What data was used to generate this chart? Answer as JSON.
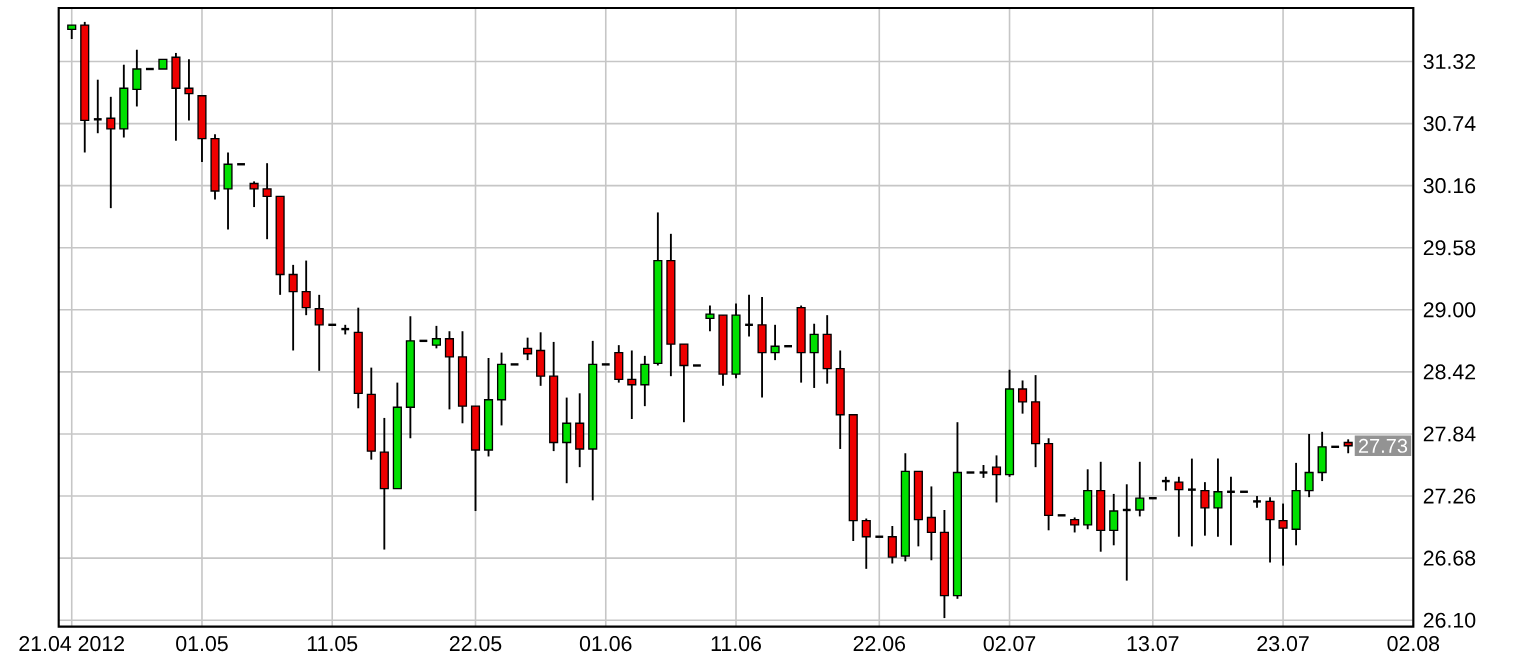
{
  "chart_data": {
    "type": "candlestick",
    "x": [
      "2012-04-21",
      "2012-04-22",
      "2012-04-23",
      "2012-04-24",
      "2012-04-25",
      "2012-04-26",
      "2012-04-27",
      "2012-04-28",
      "2012-04-29",
      "2012-04-30",
      "2012-05-01",
      "2012-05-02",
      "2012-05-03",
      "2012-05-04",
      "2012-05-05",
      "2012-05-06",
      "2012-05-07",
      "2012-05-08",
      "2012-05-09",
      "2012-05-10",
      "2012-05-11",
      "2012-05-12",
      "2012-05-13",
      "2012-05-14",
      "2012-05-15",
      "2012-05-16",
      "2012-05-17",
      "2012-05-18",
      "2012-05-19",
      "2012-05-20",
      "2012-05-21",
      "2012-05-22",
      "2012-05-23",
      "2012-05-24",
      "2012-05-25",
      "2012-05-26",
      "2012-05-27",
      "2012-05-28",
      "2012-05-29",
      "2012-05-30",
      "2012-05-31",
      "2012-06-01",
      "2012-06-02",
      "2012-06-03",
      "2012-06-04",
      "2012-06-05",
      "2012-06-06",
      "2012-06-07",
      "2012-06-08",
      "2012-06-09",
      "2012-06-10",
      "2012-06-11",
      "2012-06-12",
      "2012-06-13",
      "2012-06-14",
      "2012-06-15",
      "2012-06-16",
      "2012-06-17",
      "2012-06-18",
      "2012-06-19",
      "2012-06-20",
      "2012-06-21",
      "2012-06-22",
      "2012-06-23",
      "2012-06-24",
      "2012-06-25",
      "2012-06-26",
      "2012-06-27",
      "2012-06-28",
      "2012-06-29",
      "2012-06-30",
      "2012-07-01",
      "2012-07-02",
      "2012-07-03",
      "2012-07-04",
      "2012-07-05",
      "2012-07-06",
      "2012-07-07",
      "2012-07-08",
      "2012-07-09",
      "2012-07-10",
      "2012-07-11",
      "2012-07-12",
      "2012-07-13",
      "2012-07-14",
      "2012-07-15",
      "2012-07-16",
      "2012-07-17",
      "2012-07-18",
      "2012-07-19",
      "2012-07-20",
      "2012-07-21",
      "2012-07-22",
      "2012-07-23",
      "2012-07-24",
      "2012-07-25",
      "2012-07-26",
      "2012-07-27",
      "2012-07-28"
    ],
    "ohlc": [
      [
        31.62,
        31.66,
        31.53,
        31.66
      ],
      [
        31.66,
        31.69,
        30.47,
        30.77
      ],
      [
        30.78,
        31.15,
        30.65,
        30.78
      ],
      [
        30.79,
        30.99,
        29.95,
        30.69
      ],
      [
        30.69,
        31.29,
        30.61,
        31.07
      ],
      [
        31.06,
        31.43,
        30.9,
        31.25
      ],
      [
        31.25,
        31.25,
        31.25,
        31.25
      ],
      [
        31.25,
        31.34,
        31.25,
        31.34
      ],
      [
        31.36,
        31.4,
        30.58,
        31.07
      ],
      [
        31.07,
        31.34,
        30.77,
        31.02
      ],
      [
        31.0,
        31.0,
        30.38,
        30.6
      ],
      [
        30.6,
        30.64,
        30.03,
        30.11
      ],
      [
        30.13,
        30.47,
        29.75,
        30.36
      ],
      [
        30.36,
        30.36,
        30.36,
        30.36
      ],
      [
        30.18,
        30.2,
        29.96,
        30.13
      ],
      [
        30.13,
        30.37,
        29.66,
        30.06
      ],
      [
        30.06,
        30.06,
        29.14,
        29.33
      ],
      [
        29.33,
        29.42,
        28.62,
        29.17
      ],
      [
        29.17,
        29.46,
        28.95,
        29.02
      ],
      [
        29.01,
        29.14,
        28.43,
        28.86
      ],
      [
        28.86,
        28.86,
        28.86,
        28.86
      ],
      [
        28.82,
        28.86,
        28.77,
        28.82
      ],
      [
        28.79,
        29.02,
        28.08,
        28.22
      ],
      [
        28.21,
        28.46,
        27.6,
        27.68
      ],
      [
        27.67,
        27.99,
        26.76,
        27.33
      ],
      [
        27.33,
        28.32,
        27.33,
        28.09
      ],
      [
        28.09,
        28.94,
        27.8,
        28.71
      ],
      [
        28.71,
        28.71,
        28.71,
        28.71
      ],
      [
        28.67,
        28.85,
        28.64,
        28.73
      ],
      [
        28.73,
        28.8,
        28.07,
        28.56
      ],
      [
        28.56,
        28.8,
        27.94,
        28.1
      ],
      [
        28.1,
        28.1,
        27.12,
        27.69
      ],
      [
        27.69,
        28.55,
        27.63,
        28.16
      ],
      [
        28.16,
        28.6,
        27.92,
        28.49
      ],
      [
        28.49,
        28.49,
        28.49,
        28.49
      ],
      [
        28.64,
        28.74,
        28.53,
        28.59
      ],
      [
        28.62,
        28.79,
        28.29,
        28.38
      ],
      [
        28.38,
        28.7,
        27.68,
        27.76
      ],
      [
        27.76,
        28.18,
        27.38,
        27.94
      ],
      [
        27.94,
        28.22,
        27.53,
        27.7
      ],
      [
        27.7,
        28.71,
        27.22,
        28.49
      ],
      [
        28.49,
        28.49,
        28.49,
        28.49
      ],
      [
        28.6,
        28.67,
        28.32,
        28.35
      ],
      [
        28.35,
        28.62,
        27.98,
        28.3
      ],
      [
        28.3,
        28.57,
        28.1,
        28.49
      ],
      [
        28.5,
        29.91,
        28.48,
        29.46
      ],
      [
        29.46,
        29.71,
        28.38,
        28.68
      ],
      [
        28.68,
        28.68,
        27.95,
        28.48
      ],
      [
        28.48,
        28.48,
        28.48,
        28.48
      ],
      [
        28.92,
        29.04,
        28.8,
        28.96
      ],
      [
        28.95,
        28.95,
        28.29,
        28.4
      ],
      [
        28.4,
        29.06,
        28.36,
        28.95
      ],
      [
        28.86,
        29.14,
        28.75,
        28.86
      ],
      [
        28.86,
        29.12,
        28.18,
        28.6
      ],
      [
        28.6,
        28.86,
        28.53,
        28.66
      ],
      [
        28.66,
        28.66,
        28.66,
        28.66
      ],
      [
        29.02,
        29.04,
        28.32,
        28.6
      ],
      [
        28.6,
        28.87,
        28.27,
        28.77
      ],
      [
        28.77,
        28.95,
        28.31,
        28.45
      ],
      [
        28.45,
        28.62,
        27.7,
        28.02
      ],
      [
        28.02,
        28.02,
        26.84,
        27.03
      ],
      [
        27.03,
        27.05,
        26.58,
        26.88
      ],
      [
        26.88,
        26.88,
        26.88,
        26.88
      ],
      [
        26.88,
        26.98,
        26.63,
        26.69
      ],
      [
        26.7,
        27.66,
        26.65,
        27.49
      ],
      [
        27.49,
        27.49,
        26.79,
        27.04
      ],
      [
        27.06,
        27.35,
        26.66,
        26.92
      ],
      [
        26.92,
        27.13,
        26.12,
        26.33
      ],
      [
        26.33,
        27.95,
        26.3,
        27.48
      ],
      [
        27.48,
        27.48,
        27.48,
        27.48
      ],
      [
        27.48,
        27.55,
        27.43,
        27.48
      ],
      [
        27.53,
        27.64,
        27.2,
        27.46
      ],
      [
        27.46,
        28.44,
        27.44,
        28.26
      ],
      [
        28.26,
        28.34,
        28.03,
        28.14
      ],
      [
        28.14,
        28.39,
        27.53,
        27.75
      ],
      [
        27.75,
        27.8,
        26.94,
        27.08
      ],
      [
        27.08,
        27.08,
        27.08,
        27.08
      ],
      [
        27.04,
        27.06,
        26.92,
        26.99
      ],
      [
        26.99,
        27.51,
        26.95,
        27.31
      ],
      [
        27.31,
        27.58,
        26.74,
        26.94
      ],
      [
        26.94,
        27.28,
        26.8,
        27.12
      ],
      [
        27.13,
        27.37,
        26.47,
        27.13
      ],
      [
        27.13,
        27.58,
        27.07,
        27.24
      ],
      [
        27.24,
        27.24,
        27.24,
        27.24
      ],
      [
        27.4,
        27.44,
        27.31,
        27.4
      ],
      [
        27.39,
        27.44,
        26.88,
        27.32
      ],
      [
        27.32,
        27.61,
        26.79,
        27.32
      ],
      [
        27.31,
        27.39,
        26.89,
        27.15
      ],
      [
        27.15,
        27.61,
        26.88,
        27.3
      ],
      [
        27.3,
        27.44,
        26.8,
        27.3
      ],
      [
        27.3,
        27.3,
        27.3,
        27.3
      ],
      [
        27.21,
        27.26,
        27.15,
        27.21
      ],
      [
        27.21,
        27.25,
        26.64,
        27.04
      ],
      [
        27.03,
        27.19,
        26.61,
        26.96
      ],
      [
        26.95,
        27.57,
        26.8,
        27.31
      ],
      [
        27.31,
        27.84,
        27.25,
        27.48
      ],
      [
        27.48,
        27.86,
        27.4,
        27.72
      ],
      [
        27.72,
        27.72,
        27.72,
        27.72
      ],
      [
        27.76,
        27.79,
        27.66,
        27.73
      ]
    ],
    "xlim": [
      "2012-04-20",
      "2012-08-02"
    ],
    "xticks": [
      {
        "value": "2012-04-21",
        "label": "21.04 2012"
      },
      {
        "value": "2012-05-01",
        "label": "01.05"
      },
      {
        "value": "2012-05-11",
        "label": "11.05"
      },
      {
        "value": "2012-05-22",
        "label": "22.05"
      },
      {
        "value": "2012-06-01",
        "label": "01.06"
      },
      {
        "value": "2012-06-11",
        "label": "11.06"
      },
      {
        "value": "2012-06-22",
        "label": "22.06"
      },
      {
        "value": "2012-07-02",
        "label": "02.07"
      },
      {
        "value": "2012-07-13",
        "label": "13.07"
      },
      {
        "value": "2012-07-23",
        "label": "23.07"
      },
      {
        "value": "2012-08-02",
        "label": "02.08"
      }
    ],
    "ylim": [
      26.04,
      31.82
    ],
    "yticks": [
      {
        "value": 26.1,
        "label": "26.10"
      },
      26.68,
      27.26,
      27.84,
      28.42,
      {
        "value": 29,
        "label": "29.00"
      },
      29.58,
      30.16,
      30.74,
      31.32
    ],
    "grid": true,
    "annotations": [
      {
        "text": "27.73",
        "y": 27.73
      }
    ]
  }
}
